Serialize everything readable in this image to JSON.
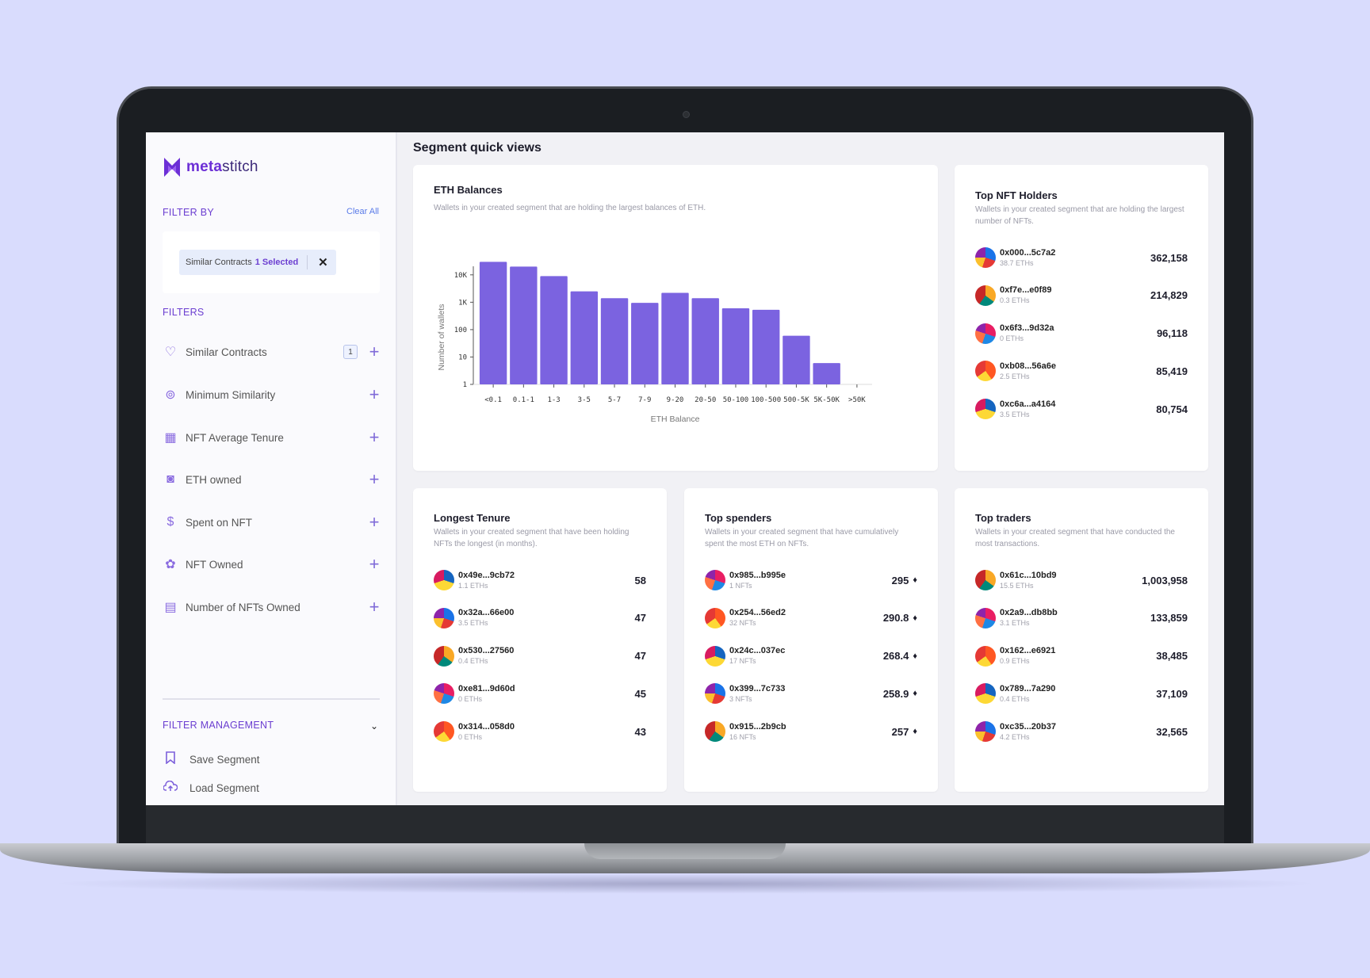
{
  "sidebar": {
    "logo_bold": "meta",
    "logo_rest": "stitch",
    "filter_by": "FILTER BY",
    "clear_all": "Clear All",
    "chip_label": "Similar Contracts",
    "chip_selected": "1 Selected",
    "filters_title": "FILTERS",
    "filters": [
      {
        "label": "Similar Contracts",
        "icon": "heart-icon",
        "badge": "1"
      },
      {
        "label": "Minimum Similarity",
        "icon": "similarity-icon"
      },
      {
        "label": "NFT Average Tenure",
        "icon": "calendar-icon"
      },
      {
        "label": "ETH owned",
        "icon": "wallet-icon"
      },
      {
        "label": "Spent on NFT",
        "icon": "dollar-icon"
      },
      {
        "label": "NFT Owned",
        "icon": "nft-icon"
      },
      {
        "label": "Number of NFTs Owned",
        "icon": "grid-calendar-icon"
      }
    ],
    "filter_management": "FILTER MANAGEMENT",
    "save_segment": "Save Segment",
    "load_segment": "Load Segment"
  },
  "main": {
    "title": "Segment quick views",
    "eth_balances": {
      "title": "ETH Balances",
      "subtitle": "Wallets in your created segment that are holding the largest balances of ETH."
    },
    "top_nft_holders": {
      "title": "Top NFT Holders",
      "subtitle": "Wallets in your created segment that are holding the largest number of NFTs.",
      "rows": [
        {
          "addr": "0x000...5c7a2",
          "sub": "38.7 ETHs",
          "value": "362,158"
        },
        {
          "addr": "0xf7e...e0f89",
          "sub": "0.3 ETHs",
          "value": "214,829"
        },
        {
          "addr": "0x6f3...9d32a",
          "sub": "0 ETHs",
          "value": "96,118"
        },
        {
          "addr": "0xb08...56a6e",
          "sub": "2.5 ETHs",
          "value": "85,419"
        },
        {
          "addr": "0xc6a...a4164",
          "sub": "3.5 ETHs",
          "value": "80,754"
        }
      ]
    },
    "longest_tenure": {
      "title": "Longest Tenure",
      "subtitle": "Wallets in your created segment that have been holding NFTs the longest (in months).",
      "rows": [
        {
          "addr": "0x49e...9cb72",
          "sub": "1.1 ETHs",
          "value": "58"
        },
        {
          "addr": "0x32a...66e00",
          "sub": "3.5 ETHs",
          "value": "47"
        },
        {
          "addr": "0x530...27560",
          "sub": "0.4 ETHs",
          "value": "47"
        },
        {
          "addr": "0xe81...9d60d",
          "sub": "0 ETHs",
          "value": "45"
        },
        {
          "addr": "0x314...058d0",
          "sub": "0 ETHs",
          "value": "43"
        }
      ]
    },
    "top_spenders": {
      "title": "Top spenders",
      "subtitle": "Wallets in your created segment that have cumulatively spent the most ETH on NFTs.",
      "eth_symbol": "♦",
      "rows": [
        {
          "addr": "0x985...b995e",
          "sub": "1 NFTs",
          "value": "295"
        },
        {
          "addr": "0x254...56ed2",
          "sub": "32 NFTs",
          "value": "290.8"
        },
        {
          "addr": "0x24c...037ec",
          "sub": "17 NFTs",
          "value": "268.4"
        },
        {
          "addr": "0x399...7c733",
          "sub": "3 NFTs",
          "value": "258.9"
        },
        {
          "addr": "0x915...2b9cb",
          "sub": "16 NFTs",
          "value": "257"
        }
      ]
    },
    "top_traders": {
      "title": "Top traders",
      "subtitle": "Wallets in your created segment that have conducted the most transactions.",
      "rows": [
        {
          "addr": "0x61c...10bd9",
          "sub": "15.5 ETHs",
          "value": "1,003,958"
        },
        {
          "addr": "0x2a9...db8bb",
          "sub": "3.1 ETHs",
          "value": "133,859"
        },
        {
          "addr": "0x162...e6921",
          "sub": "0.9 ETHs",
          "value": "38,485"
        },
        {
          "addr": "0x789...7a290",
          "sub": "0.4 ETHs",
          "value": "37,109"
        },
        {
          "addr": "0xc35...20b37",
          "sub": "4.2 ETHs",
          "value": "32,565"
        }
      ]
    }
  },
  "chart_data": {
    "type": "bar",
    "xlabel": "ETH Balance",
    "ylabel": "Number of wallets",
    "yscale": "log",
    "yticks": [
      "1",
      "10",
      "100",
      "1K",
      "10K"
    ],
    "ylim": [
      1,
      40000
    ],
    "categories": [
      "<0.1",
      "0.1-1",
      "1-3",
      "3-5",
      "5-7",
      "7-9",
      "9-20",
      "20-50",
      "50-100",
      "100-500",
      "500-5K",
      "5K-50K",
      ">50K"
    ],
    "values": [
      30000,
      20000,
      9000,
      2500,
      1400,
      950,
      2200,
      1400,
      600,
      530,
      60,
      6,
      0
    ],
    "color": "#7b63e0"
  },
  "colors": {
    "accent": "#6c3fd1",
    "bar": "#7b63e0",
    "background": "#d9dcfd"
  }
}
